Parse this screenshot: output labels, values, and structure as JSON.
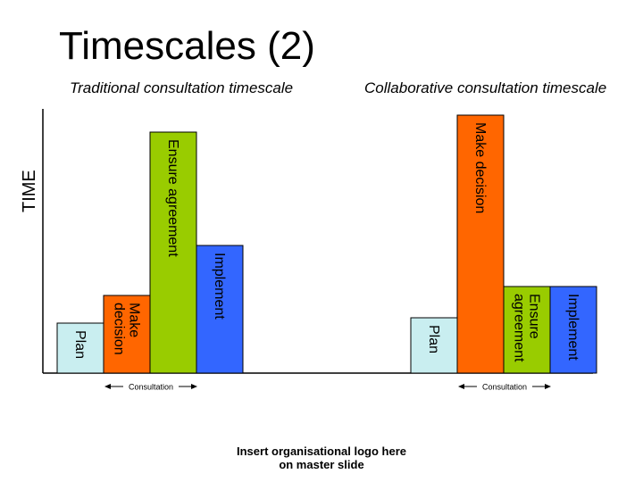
{
  "title": "Timescales (2)",
  "subtitles": {
    "traditional": "Traditional consultation timescale",
    "collaborative": "Collaborative consultation timescale"
  },
  "axis_label": "TIME",
  "colors": {
    "plan": "#c9eef0",
    "make_decision": "#ff6600",
    "ensure_agreement": "#99cc00",
    "implement": "#3366ff",
    "outline": "#000000"
  },
  "chart_data": {
    "type": "bar",
    "ylabel": "TIME",
    "groups": [
      {
        "name": "Traditional consultation timescale",
        "bars": [
          {
            "label": "Plan",
            "value": 56,
            "color": "#c9eef0"
          },
          {
            "label": "Make decision",
            "value": 87,
            "color": "#ff6600"
          },
          {
            "label": "Ensure agreement",
            "value": 270,
            "color": "#99cc00"
          },
          {
            "label": "Implement",
            "value": 143,
            "color": "#3366ff"
          }
        ],
        "span_label": "Consultation"
      },
      {
        "name": "Collaborative consultation timescale",
        "bars": [
          {
            "label": "Plan",
            "value": 62,
            "color": "#c9eef0"
          },
          {
            "label": "Make decision",
            "value": 289,
            "color": "#ff6600"
          },
          {
            "label": "Ensure agreement",
            "value": 97,
            "color": "#99cc00"
          },
          {
            "label": "Implement",
            "value": 97,
            "color": "#3366ff"
          }
        ],
        "span_label": "Consultation"
      }
    ]
  },
  "logo_text": [
    "Insert organisational logo here",
    "on master slide"
  ]
}
